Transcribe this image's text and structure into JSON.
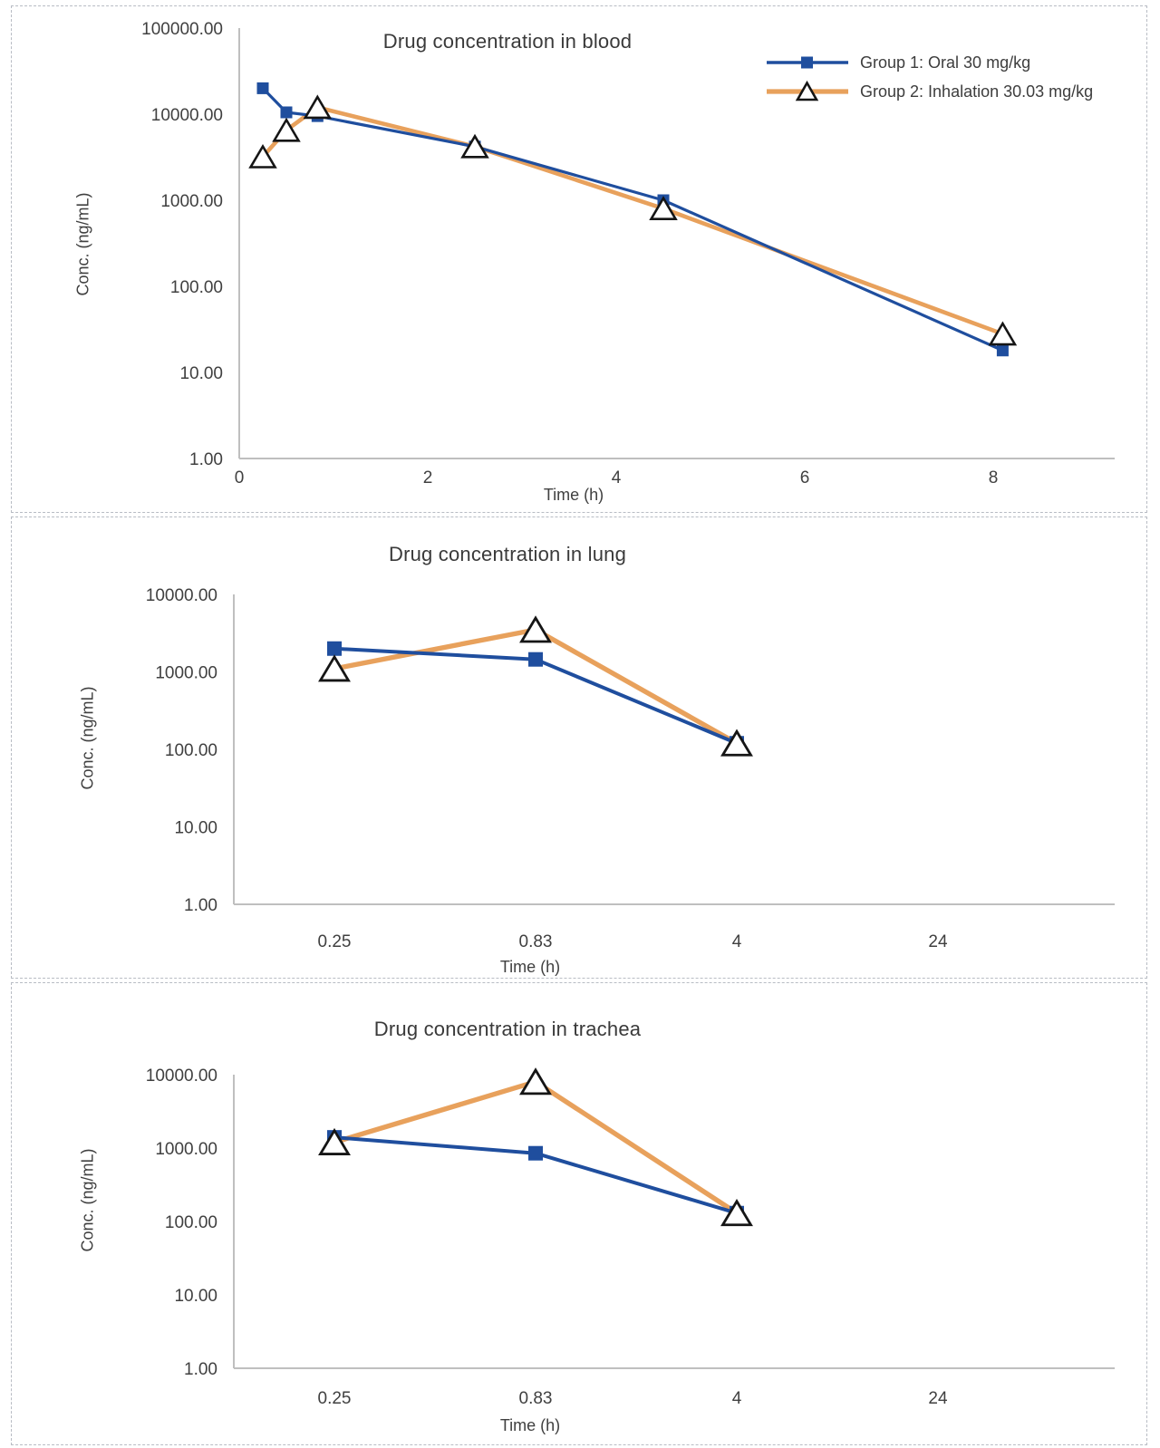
{
  "colors": {
    "group1": "#1f4e9e",
    "group2": "#e8a15c",
    "axis_line": "#bfbfbf",
    "text": "#404040",
    "marker_outline": "#151515",
    "panel_border": "#b8bcc4"
  },
  "legend": {
    "position": "top-right",
    "items": [
      {
        "label": "Group 1: Oral 30 mg/kg",
        "series": "group1",
        "marker": "square"
      },
      {
        "label": "Group 2: Inhalation 30.03 mg/kg",
        "series": "group2",
        "marker": "triangle"
      }
    ]
  },
  "chart_data": [
    {
      "type": "line",
      "title": "Drug concentration in blood",
      "xlabel": "Time (h)",
      "ylabel": "Conc. (ng/mL)",
      "y_scale": "log",
      "ylim": [
        1,
        100000
      ],
      "y_tick_labels": [
        "100000.00",
        "10000.00",
        "1000.00",
        "100.00",
        "10.00",
        "1.00"
      ],
      "y_tick_values": [
        100000,
        10000,
        1000,
        100,
        10,
        1
      ],
      "x_mode": "linear",
      "xlim": [
        0,
        9.3
      ],
      "x_tick_labels": [
        "0",
        "2",
        "4",
        "6",
        "8"
      ],
      "x_tick_values": [
        0,
        2,
        4,
        6,
        8
      ],
      "grid": false,
      "legend_shown": true,
      "series": [
        {
          "name": "Group 1: Oral 30 mg/kg",
          "color_key": "group1",
          "marker": "square",
          "x": [
            0.25,
            0.5,
            0.83,
            2.5,
            4.5,
            8.1
          ],
          "y": [
            20000,
            10500,
            9500,
            4200,
            1000,
            18
          ]
        },
        {
          "name": "Group 2: Inhalation 30.03 mg/kg",
          "color_key": "group2",
          "marker": "triangle",
          "x": [
            0.25,
            0.5,
            0.83,
            2.5,
            4.5,
            8.1
          ],
          "y": [
            3200,
            6500,
            12000,
            4200,
            800,
            28
          ]
        }
      ]
    },
    {
      "type": "line",
      "title": "Drug concentration in lung",
      "xlabel": "Time (h)",
      "ylabel": "Conc. (ng/mL)",
      "y_scale": "log",
      "ylim": [
        1,
        10000
      ],
      "y_tick_labels": [
        "10000.00",
        "1000.00",
        "100.00",
        "10.00",
        "1.00"
      ],
      "y_tick_values": [
        10000,
        1000,
        100,
        10,
        1
      ],
      "x_mode": "category",
      "categories": [
        "0.25",
        "0.83",
        "4",
        "24"
      ],
      "grid": false,
      "legend_shown": false,
      "series": [
        {
          "name": "Group 1: Oral 30 mg/kg",
          "color_key": "group1",
          "marker": "square",
          "values": [
            2000,
            1450,
            120,
            null
          ]
        },
        {
          "name": "Group 2: Inhalation 30.03 mg/kg",
          "color_key": "group2",
          "marker": "triangle",
          "values": [
            1100,
            3500,
            120,
            null
          ]
        }
      ]
    },
    {
      "type": "line",
      "title": "Drug concentration in trachea",
      "xlabel": "Time (h)",
      "ylabel": "Conc. (ng/mL)",
      "y_scale": "log",
      "ylim": [
        1,
        10000
      ],
      "y_tick_labels": [
        "10000.00",
        "1000.00",
        "100.00",
        "10.00",
        "1.00"
      ],
      "y_tick_values": [
        10000,
        1000,
        100,
        10,
        1
      ],
      "x_mode": "category",
      "categories": [
        "0.25",
        "0.83",
        "4",
        "24"
      ],
      "grid": false,
      "legend_shown": false,
      "series": [
        {
          "name": "Group 1: Oral 30 mg/kg",
          "color_key": "group1",
          "marker": "square",
          "values": [
            1400,
            850,
            130,
            null
          ]
        },
        {
          "name": "Group 2: Inhalation 30.03 mg/kg",
          "color_key": "group2",
          "marker": "triangle",
          "values": [
            1200,
            8000,
            130,
            null
          ]
        }
      ]
    }
  ]
}
